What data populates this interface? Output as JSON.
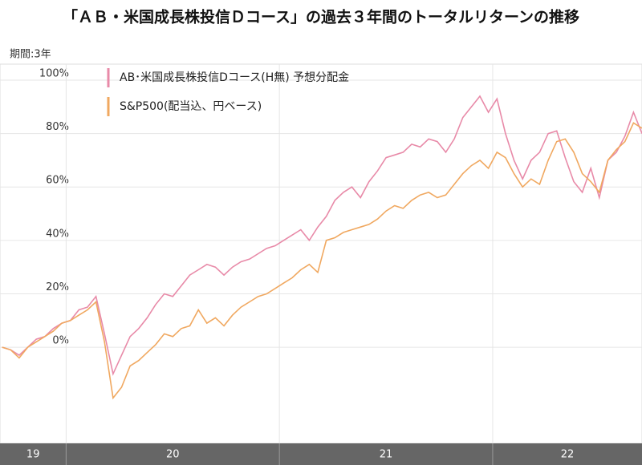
{
  "chart_data": {
    "type": "line",
    "title": "「ＡＢ・米国成長株投信Ｄコース」の過去３年間のトータルリターンの推移",
    "subtitle": "期間:3年",
    "x": [
      2019.7,
      2019.74,
      2019.78,
      2019.82,
      2019.86,
      2019.9,
      2019.94,
      2019.98,
      2020.02,
      2020.06,
      2020.1,
      2020.14,
      2020.18,
      2020.22,
      2020.26,
      2020.3,
      2020.34,
      2020.38,
      2020.42,
      2020.46,
      2020.5,
      2020.54,
      2020.58,
      2020.62,
      2020.66,
      2020.7,
      2020.74,
      2020.78,
      2020.82,
      2020.86,
      2020.9,
      2020.94,
      2020.98,
      2021.02,
      2021.06,
      2021.1,
      2021.14,
      2021.18,
      2021.22,
      2021.26,
      2021.3,
      2021.34,
      2021.38,
      2021.42,
      2021.46,
      2021.5,
      2021.54,
      2021.58,
      2021.62,
      2021.66,
      2021.7,
      2021.74,
      2021.78,
      2021.82,
      2021.86,
      2021.9,
      2021.94,
      2021.98,
      2022.02,
      2022.06,
      2022.1,
      2022.14,
      2022.18,
      2022.22,
      2022.26,
      2022.3,
      2022.34,
      2022.38,
      2022.42,
      2022.46,
      2022.5,
      2022.54,
      2022.58,
      2022.62,
      2022.66,
      2022.7
    ],
    "series": [
      {
        "name": "AB･米国成長株投信Dコース(H無) 予想分配金",
        "color": "#e88aa8",
        "values": [
          0,
          -1,
          -3,
          0,
          3,
          4,
          7,
          9,
          10,
          14,
          15,
          19,
          5,
          -10,
          -3,
          4,
          7,
          11,
          16,
          20,
          19,
          23,
          27,
          29,
          31,
          30,
          27,
          30,
          32,
          33,
          35,
          37,
          38,
          40,
          42,
          44,
          40,
          45,
          49,
          55,
          58,
          60,
          56,
          62,
          66,
          71,
          72,
          73,
          76,
          75,
          78,
          77,
          73,
          78,
          86,
          90,
          94,
          88,
          93,
          80,
          70,
          63,
          70,
          73,
          80,
          81,
          71,
          62,
          58,
          67,
          56,
          70,
          73,
          79,
          88,
          80
        ]
      },
      {
        "name": "S&P500(配当込、円ベース)",
        "color": "#f0a860",
        "values": [
          0,
          -1,
          -4,
          0,
          2,
          4,
          6,
          9,
          10,
          12,
          14,
          17,
          2,
          -19,
          -15,
          -7,
          -5,
          -2,
          1,
          5,
          4,
          7,
          8,
          14,
          9,
          11,
          8,
          12,
          15,
          17,
          19,
          20,
          22,
          24,
          26,
          29,
          31,
          28,
          40,
          41,
          43,
          44,
          45,
          46,
          48,
          51,
          53,
          52,
          55,
          57,
          58,
          56,
          57,
          61,
          65,
          68,
          70,
          67,
          73,
          71,
          65,
          60,
          63,
          61,
          70,
          77,
          78,
          73,
          65,
          62,
          58,
          70,
          74,
          77,
          84,
          82
        ]
      }
    ],
    "xlim": [
      2019.69,
      2022.7
    ],
    "xticks": [
      {
        "value": 2019,
        "label": "19"
      },
      {
        "value": 2020,
        "label": "20"
      },
      {
        "value": 2021,
        "label": "21"
      },
      {
        "value": 2022,
        "label": "22"
      }
    ],
    "ylim": [
      -36,
      106
    ],
    "yticks": [
      {
        "value": 0,
        "label": "0%"
      },
      {
        "value": 20,
        "label": "20%"
      },
      {
        "value": 40,
        "label": "40%"
      },
      {
        "value": 60,
        "label": "60%"
      },
      {
        "value": 80,
        "label": "80%"
      },
      {
        "value": 100,
        "label": "100%"
      }
    ],
    "grid": true,
    "legend": "top-left"
  }
}
